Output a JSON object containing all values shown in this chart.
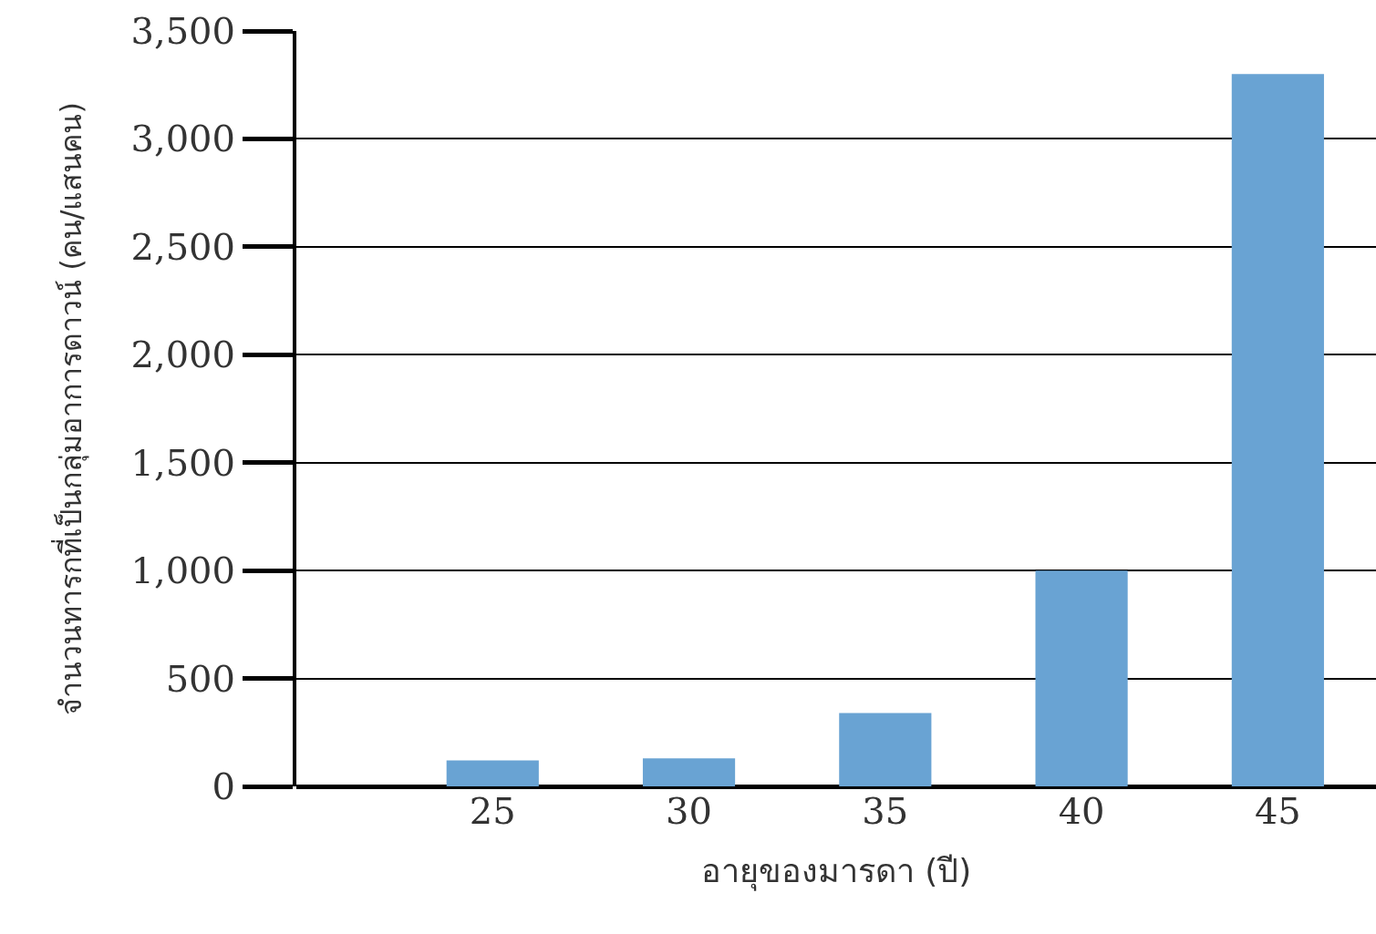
{
  "chart_data": {
    "type": "bar",
    "xlabel": "อายุของมารดา (ปี)",
    "ylabel": "จำนวนทารกที่เป็นกลุ่มอาการดาวน์ (คน/แสนคน)",
    "categories": [
      "25",
      "30",
      "35",
      "40",
      "45"
    ],
    "values": [
      120,
      130,
      340,
      1000,
      3300
    ],
    "color": "#69a3d3",
    "ylim": [
      0,
      3500
    ],
    "yticks": [
      0,
      500,
      {
        "value": 1000,
        "label": "1,000"
      },
      {
        "value": 1500,
        "label": "1,500"
      },
      {
        "value": 2000,
        "label": "2,000"
      },
      {
        "value": 2500,
        "label": "2,500"
      },
      {
        "value": 3000,
        "label": "3,000"
      },
      {
        "value": 3500,
        "label": "3,500"
      }
    ],
    "grid": "y"
  }
}
